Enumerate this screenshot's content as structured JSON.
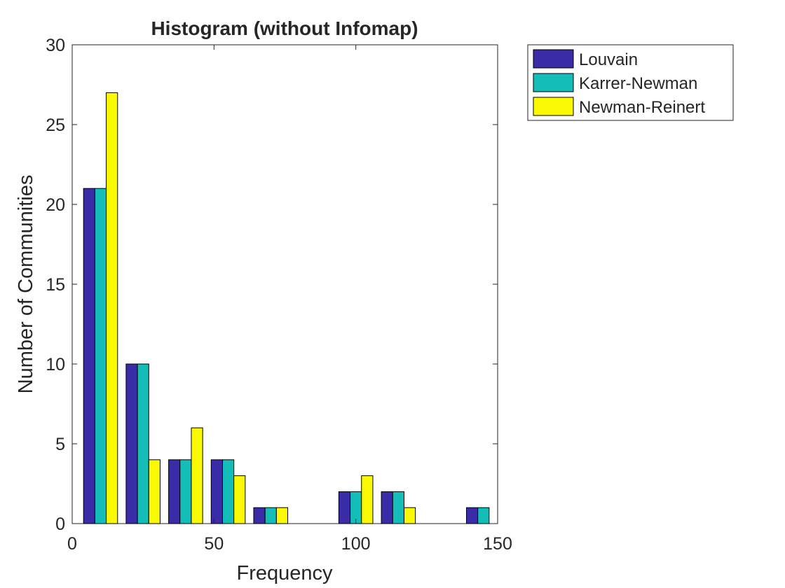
{
  "chart_data": {
    "type": "bar",
    "title": "Histogram (without Infomap)",
    "xlabel": "Frequency",
    "ylabel": "Number of Communities",
    "xlim": [
      0,
      150
    ],
    "ylim": [
      0,
      30
    ],
    "xticks": [
      "0",
      "50",
      "100",
      "150"
    ],
    "yticks": [
      "0",
      "5",
      "10",
      "15",
      "20",
      "25",
      "30"
    ],
    "bin_centers": [
      10,
      25,
      40,
      55,
      70,
      85,
      100,
      115,
      130,
      145
    ],
    "series": [
      {
        "name": "Louvain",
        "color": "#3a2ca6",
        "values": [
          21,
          10,
          4,
          4,
          1,
          0,
          2,
          2,
          0,
          1
        ]
      },
      {
        "name": "Karrer-Newman",
        "color": "#14bdb7",
        "values": [
          21,
          10,
          4,
          4,
          1,
          0,
          2,
          2,
          0,
          1
        ]
      },
      {
        "name": "Newman-Reinert",
        "color": "#f9f904",
        "values": [
          27,
          4,
          6,
          3,
          1,
          0,
          3,
          1,
          0,
          0
        ]
      }
    ],
    "legend_position": "outside top-right",
    "grid": false,
    "box": true
  }
}
